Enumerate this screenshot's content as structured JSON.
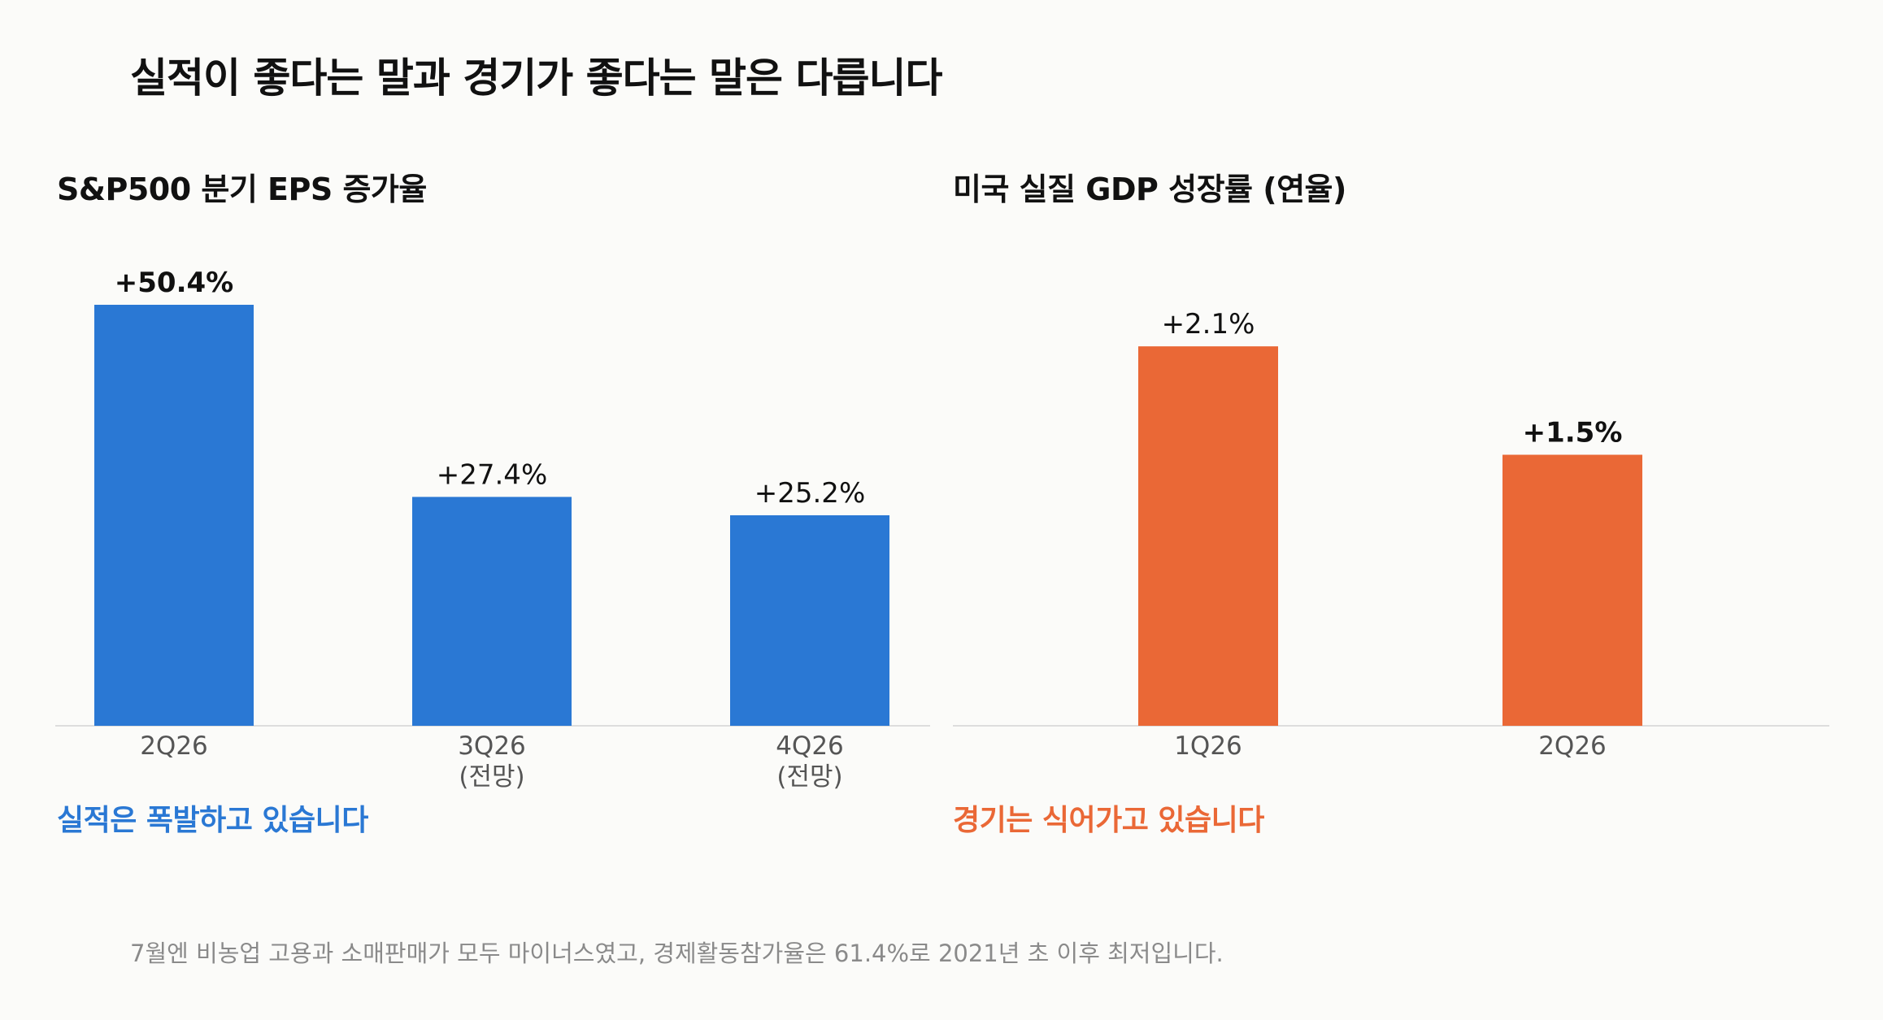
{
  "title": "실적이 좋다는 말과 경기가 좋다는 말은 다릅니다",
  "footnote": "7월엔 비농업 고용과 소매판매가 모두 마이너스였고, 경제활동참가율은 61.4%로 2021년 초 이후 최저입니다.",
  "colors": {
    "eps": "#2a78d4",
    "gdp": "#ea6836",
    "axis": "#dddddd"
  },
  "panels": {
    "eps": {
      "title": "S&P500 분기 EPS 증가율",
      "takeaway": "실적은 폭발하고 있습니다"
    },
    "gdp": {
      "title": "미국 실질 GDP 성장률 (연율)",
      "takeaway": "경기는 식어가고 있습니다"
    }
  },
  "chart_data": [
    {
      "type": "bar",
      "title": "S&P500 분기 EPS 증가율",
      "categories": [
        [
          "2Q26"
        ],
        [
          "3Q26",
          "(전망)"
        ],
        [
          "4Q26",
          "(전망)"
        ]
      ],
      "values": [
        50.4,
        27.4,
        25.2
      ],
      "value_labels": [
        "+50.4%",
        "+27.4%",
        "+25.2%"
      ],
      "emphasized": [
        true,
        false,
        false
      ],
      "ylim": [
        0,
        50.4
      ],
      "grid": false,
      "color": "#2a78d4"
    },
    {
      "type": "bar",
      "title": "미국 실질 GDP 성장률 (연율)",
      "categories": [
        [
          "1Q26"
        ],
        [
          "2Q26"
        ]
      ],
      "values": [
        2.1,
        1.5
      ],
      "value_labels": [
        "+2.1%",
        "+1.5%"
      ],
      "emphasized": [
        false,
        true
      ],
      "ylim": [
        0,
        2.33
      ],
      "grid": false,
      "color": "#ea6836"
    }
  ]
}
